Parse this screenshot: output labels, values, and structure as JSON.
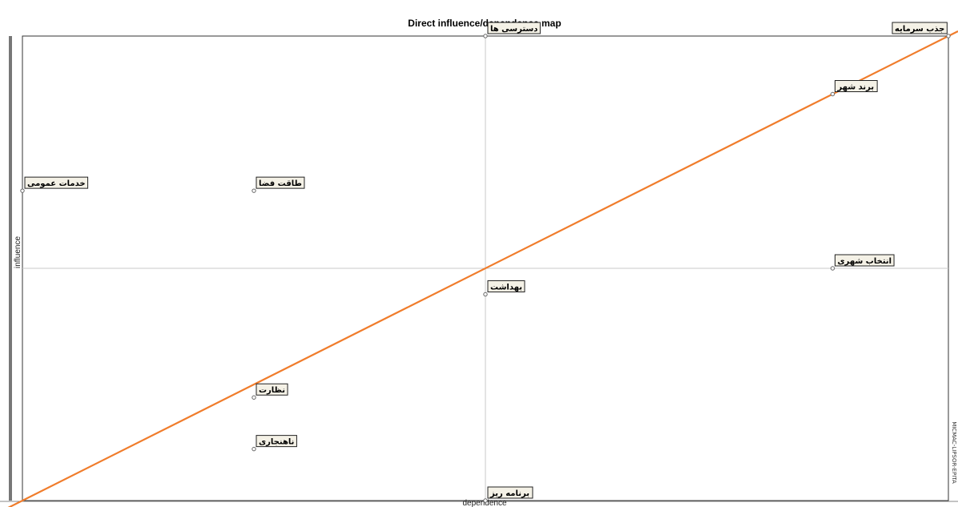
{
  "chart_data": {
    "type": "scatter",
    "title": "Direct influence/dependence map",
    "xlabel": "dependence",
    "ylabel": "influence",
    "xlim": [
      0,
      1
    ],
    "ylim": [
      0,
      1
    ],
    "quadrant_lines": {
      "x": 0.5,
      "y": 0.5
    },
    "diagonal": {
      "from": [
        0,
        0
      ],
      "to": [
        1,
        1
      ],
      "color": "#f07c2b"
    },
    "grid": false,
    "points": [
      {
        "label": "دسترسی ها",
        "x": 0.5,
        "y": 1.0
      },
      {
        "label": "جذب سرمایه",
        "x": 1.0,
        "y": 1.0
      },
      {
        "label": "برند شهر",
        "x": 0.875,
        "y": 0.875
      },
      {
        "label": "خدمات عمومی",
        "x": 0.0,
        "y": 0.667
      },
      {
        "label": "طاقت فضا",
        "x": 0.25,
        "y": 0.667
      },
      {
        "label": "انتخاب شهری",
        "x": 0.875,
        "y": 0.5
      },
      {
        "label": "بهداشت",
        "x": 0.5,
        "y": 0.444
      },
      {
        "label": "نظارت",
        "x": 0.25,
        "y": 0.222
      },
      {
        "label": "ناهنجاری",
        "x": 0.25,
        "y": 0.111
      },
      {
        "label": "برنامه ریز",
        "x": 0.5,
        "y": 0.0
      }
    ]
  },
  "side_text": "MICMAC-LIPSOR-EPITA",
  "colors": {
    "axis": "#555555",
    "quadrant": "#c8c8c8",
    "diagonal": "#f07c2b",
    "point": "#666666"
  }
}
